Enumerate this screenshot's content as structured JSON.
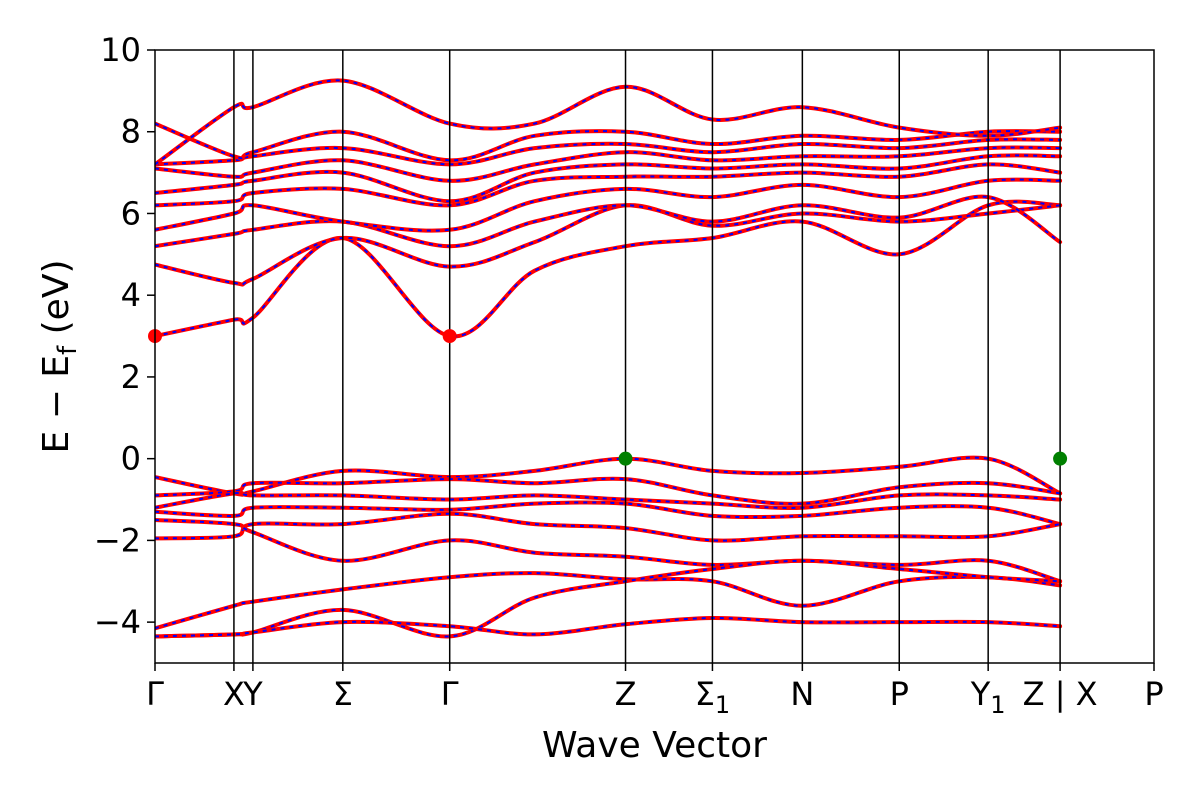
{
  "chart_data": {
    "type": "line",
    "title": "",
    "xlabel": "Wave Vector",
    "ylabel": "E − E",
    "ylabel_sub": "f",
    "ylabel_unit": " (eV)",
    "ylim": [
      -5,
      10
    ],
    "yticks": [
      -4,
      -2,
      0,
      2,
      4,
      6,
      8,
      10
    ],
    "ytick_labels": [
      "−4",
      "−2",
      "0",
      "2",
      "4",
      "6",
      "8",
      "10"
    ],
    "xlim": [
      0,
      1
    ],
    "kpoints": [
      {
        "label": "Γ",
        "sub": "",
        "x": 0.0
      },
      {
        "label": "X",
        "sub": "",
        "x": 0.079
      },
      {
        "label": "Y",
        "sub": "",
        "x": 0.098
      },
      {
        "label": "Σ",
        "sub": "",
        "x": 0.188
      },
      {
        "label": "Γ",
        "sub": "",
        "x": 0.295
      },
      {
        "label": "Z",
        "sub": "",
        "x": 0.471
      },
      {
        "label": "Σ",
        "sub": "1",
        "x": 0.558
      },
      {
        "label": "N",
        "sub": "",
        "x": 0.648
      },
      {
        "label": "P",
        "sub": "",
        "x": 0.745
      },
      {
        "label": "Y",
        "sub": "1",
        "x": 0.834
      },
      {
        "label": "Z | X",
        "sub": "",
        "x": 0.906
      },
      {
        "label": "P",
        "sub": "",
        "x": 1.0
      }
    ],
    "series_colors": {
      "dft": "#ff0000",
      "wannier": "#0000ff"
    },
    "special_points": [
      {
        "x": 0.0,
        "y": 3.0,
        "color": "#ff0000"
      },
      {
        "x": 0.295,
        "y": 3.0,
        "color": "#ff0000"
      },
      {
        "x": 0.471,
        "y": 0.0,
        "color": "#008000"
      },
      {
        "x": 0.906,
        "y": 0.0,
        "color": "#008000"
      }
    ],
    "bands": [
      [
        [
          0.0,
          3.0
        ],
        [
          0.079,
          3.4
        ],
        [
          0.098,
          3.45
        ],
        [
          0.188,
          5.4
        ],
        [
          0.295,
          3.0
        ],
        [
          0.38,
          4.6
        ],
        [
          0.471,
          5.2
        ],
        [
          0.558,
          5.4
        ],
        [
          0.648,
          5.8
        ],
        [
          0.745,
          5.0
        ],
        [
          0.834,
          6.2
        ],
        [
          0.906,
          6.2
        ]
      ],
      [
        [
          0.0,
          4.75
        ],
        [
          0.079,
          4.3
        ],
        [
          0.098,
          4.4
        ],
        [
          0.188,
          5.4
        ],
        [
          0.295,
          4.7
        ],
        [
          0.38,
          5.3
        ],
        [
          0.471,
          6.2
        ],
        [
          0.558,
          5.7
        ],
        [
          0.648,
          6.0
        ],
        [
          0.745,
          5.8
        ],
        [
          0.834,
          6.0
        ],
        [
          0.906,
          6.2
        ]
      ],
      [
        [
          0.0,
          5.2
        ],
        [
          0.079,
          5.5
        ],
        [
          0.098,
          5.6
        ],
        [
          0.188,
          5.8
        ],
        [
          0.295,
          5.2
        ],
        [
          0.38,
          5.8
        ],
        [
          0.471,
          6.2
        ],
        [
          0.558,
          5.8
        ],
        [
          0.648,
          6.2
        ],
        [
          0.745,
          5.9
        ],
        [
          0.834,
          6.4
        ],
        [
          0.906,
          5.3
        ]
      ],
      [
        [
          0.0,
          5.6
        ],
        [
          0.079,
          6.0
        ],
        [
          0.098,
          6.2
        ],
        [
          0.188,
          5.8
        ],
        [
          0.295,
          5.6
        ],
        [
          0.38,
          6.3
        ],
        [
          0.471,
          6.6
        ],
        [
          0.558,
          6.4
        ],
        [
          0.648,
          6.7
        ],
        [
          0.745,
          6.4
        ],
        [
          0.834,
          6.8
        ],
        [
          0.906,
          6.8
        ]
      ],
      [
        [
          0.0,
          6.2
        ],
        [
          0.079,
          6.3
        ],
        [
          0.098,
          6.5
        ],
        [
          0.188,
          6.6
        ],
        [
          0.295,
          6.2
        ],
        [
          0.38,
          6.8
        ],
        [
          0.471,
          6.9
        ],
        [
          0.558,
          6.9
        ],
        [
          0.648,
          7.0
        ],
        [
          0.745,
          6.9
        ],
        [
          0.834,
          7.2
        ],
        [
          0.906,
          7.0
        ]
      ],
      [
        [
          0.0,
          6.5
        ],
        [
          0.079,
          6.7
        ],
        [
          0.098,
          6.8
        ],
        [
          0.188,
          7.0
        ],
        [
          0.295,
          6.3
        ],
        [
          0.38,
          7.0
        ],
        [
          0.471,
          7.2
        ],
        [
          0.558,
          7.1
        ],
        [
          0.648,
          7.2
        ],
        [
          0.745,
          7.1
        ],
        [
          0.834,
          7.4
        ],
        [
          0.906,
          7.4
        ]
      ],
      [
        [
          0.0,
          7.1
        ],
        [
          0.079,
          6.9
        ],
        [
          0.098,
          7.0
        ],
        [
          0.188,
          7.3
        ],
        [
          0.295,
          6.8
        ],
        [
          0.38,
          7.2
        ],
        [
          0.471,
          7.5
        ],
        [
          0.558,
          7.3
        ],
        [
          0.648,
          7.4
        ],
        [
          0.745,
          7.4
        ],
        [
          0.834,
          7.6
        ],
        [
          0.906,
          7.6
        ]
      ],
      [
        [
          0.0,
          7.2
        ],
        [
          0.079,
          7.3
        ],
        [
          0.098,
          7.4
        ],
        [
          0.188,
          7.6
        ],
        [
          0.295,
          7.2
        ],
        [
          0.38,
          7.6
        ],
        [
          0.471,
          7.7
        ],
        [
          0.558,
          7.5
        ],
        [
          0.648,
          7.7
        ],
        [
          0.745,
          7.6
        ],
        [
          0.834,
          7.8
        ],
        [
          0.906,
          7.8
        ]
      ],
      [
        [
          0.0,
          8.2
        ],
        [
          0.079,
          7.4
        ],
        [
          0.098,
          7.5
        ],
        [
          0.188,
          8.0
        ],
        [
          0.295,
          7.3
        ],
        [
          0.38,
          7.9
        ],
        [
          0.471,
          8.0
        ],
        [
          0.558,
          7.7
        ],
        [
          0.648,
          7.9
        ],
        [
          0.745,
          7.8
        ],
        [
          0.834,
          8.0
        ],
        [
          0.906,
          8.0
        ]
      ],
      [
        [
          0.0,
          7.2
        ],
        [
          0.079,
          8.6
        ],
        [
          0.098,
          8.6
        ],
        [
          0.188,
          9.25
        ],
        [
          0.295,
          8.2
        ],
        [
          0.38,
          8.2
        ],
        [
          0.471,
          9.1
        ],
        [
          0.558,
          8.3
        ],
        [
          0.648,
          8.6
        ],
        [
          0.745,
          8.1
        ],
        [
          0.834,
          7.9
        ],
        [
          0.906,
          8.1
        ]
      ],
      [
        [
          0.0,
          -0.45
        ],
        [
          0.079,
          -0.85
        ],
        [
          0.098,
          -0.8
        ],
        [
          0.188,
          -0.3
        ],
        [
          0.295,
          -0.45
        ],
        [
          0.38,
          -0.3
        ],
        [
          0.471,
          0.0
        ],
        [
          0.558,
          -0.3
        ],
        [
          0.648,
          -0.35
        ],
        [
          0.745,
          -0.2
        ],
        [
          0.834,
          0.0
        ],
        [
          0.906,
          -0.85
        ]
      ],
      [
        [
          0.0,
          -0.9
        ],
        [
          0.079,
          -0.8
        ],
        [
          0.098,
          -0.6
        ],
        [
          0.188,
          -0.6
        ],
        [
          0.295,
          -0.5
        ],
        [
          0.38,
          -0.6
        ],
        [
          0.471,
          -0.5
        ],
        [
          0.558,
          -0.9
        ],
        [
          0.648,
          -1.1
        ],
        [
          0.745,
          -0.7
        ],
        [
          0.834,
          -0.6
        ],
        [
          0.906,
          -0.85
        ]
      ],
      [
        [
          0.0,
          -1.2
        ],
        [
          0.079,
          -0.85
        ],
        [
          0.098,
          -0.9
        ],
        [
          0.188,
          -0.9
        ],
        [
          0.295,
          -1.0
        ],
        [
          0.38,
          -0.9
        ],
        [
          0.471,
          -1.0
        ],
        [
          0.558,
          -1.1
        ],
        [
          0.648,
          -1.2
        ],
        [
          0.745,
          -0.9
        ],
        [
          0.834,
          -0.9
        ],
        [
          0.906,
          -1.0
        ]
      ],
      [
        [
          0.0,
          -1.3
        ],
        [
          0.079,
          -1.4
        ],
        [
          0.098,
          -1.2
        ],
        [
          0.188,
          -1.2
        ],
        [
          0.295,
          -1.25
        ],
        [
          0.38,
          -1.1
        ],
        [
          0.471,
          -1.1
        ],
        [
          0.558,
          -1.4
        ],
        [
          0.648,
          -1.4
        ],
        [
          0.745,
          -1.2
        ],
        [
          0.834,
          -1.2
        ],
        [
          0.906,
          -1.6
        ]
      ],
      [
        [
          0.0,
          -1.95
        ],
        [
          0.079,
          -1.9
        ],
        [
          0.098,
          -1.6
        ],
        [
          0.188,
          -1.6
        ],
        [
          0.295,
          -1.35
        ],
        [
          0.38,
          -1.6
        ],
        [
          0.471,
          -1.7
        ],
        [
          0.558,
          -2.0
        ],
        [
          0.648,
          -1.9
        ],
        [
          0.745,
          -1.9
        ],
        [
          0.834,
          -1.9
        ],
        [
          0.906,
          -1.6
        ]
      ],
      [
        [
          0.0,
          -1.5
        ],
        [
          0.079,
          -1.6
        ],
        [
          0.098,
          -1.8
        ],
        [
          0.188,
          -2.5
        ],
        [
          0.295,
          -2.0
        ],
        [
          0.38,
          -2.3
        ],
        [
          0.471,
          -2.4
        ],
        [
          0.558,
          -2.6
        ],
        [
          0.648,
          -2.5
        ],
        [
          0.745,
          -2.6
        ],
        [
          0.834,
          -2.5
        ],
        [
          0.906,
          -3.0
        ]
      ],
      [
        [
          0.0,
          -4.15
        ],
        [
          0.079,
          -3.6
        ],
        [
          0.098,
          -3.5
        ],
        [
          0.188,
          -3.2
        ],
        [
          0.295,
          -2.9
        ],
        [
          0.38,
          -2.8
        ],
        [
          0.471,
          -2.95
        ],
        [
          0.558,
          -3.0
        ],
        [
          0.648,
          -3.6
        ],
        [
          0.745,
          -3.0
        ],
        [
          0.834,
          -2.9
        ],
        [
          0.906,
          -3.1
        ]
      ],
      [
        [
          0.0,
          -4.35
        ],
        [
          0.079,
          -4.3
        ],
        [
          0.098,
          -4.25
        ],
        [
          0.188,
          -3.7
        ],
        [
          0.295,
          -4.35
        ],
        [
          0.38,
          -3.4
        ],
        [
          0.471,
          -3.0
        ],
        [
          0.558,
          -2.7
        ],
        [
          0.648,
          -2.5
        ],
        [
          0.745,
          -2.7
        ],
        [
          0.834,
          -2.9
        ],
        [
          0.906,
          -3.0
        ]
      ],
      [
        [
          0.0,
          -4.35
        ],
        [
          0.079,
          -4.3
        ],
        [
          0.098,
          -4.25
        ],
        [
          0.188,
          -4.0
        ],
        [
          0.295,
          -4.1
        ],
        [
          0.38,
          -4.3
        ],
        [
          0.471,
          -4.05
        ],
        [
          0.558,
          -3.9
        ],
        [
          0.648,
          -4.0
        ],
        [
          0.745,
          -4.0
        ],
        [
          0.834,
          -4.0
        ],
        [
          0.906,
          -4.1
        ]
      ]
    ]
  }
}
